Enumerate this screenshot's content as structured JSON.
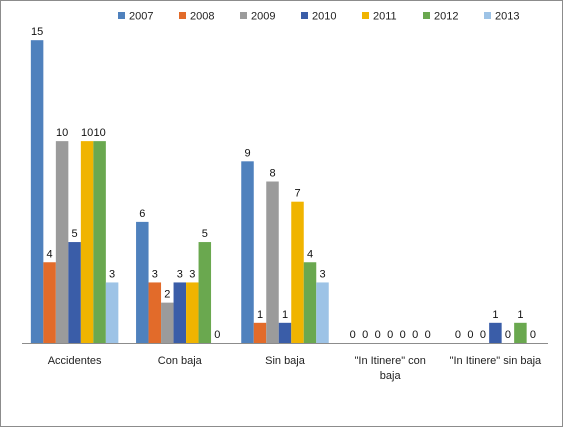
{
  "chart_data": {
    "type": "bar",
    "title": "",
    "xlabel": "",
    "ylabel": "",
    "ylim": [
      0,
      16
    ],
    "grid": false,
    "legend_position": "top",
    "categories": [
      [
        "Accidentes"
      ],
      [
        "Con baja"
      ],
      [
        "Sin baja"
      ],
      [
        "\"In Itinere\" con",
        "baja"
      ],
      [
        "\"In Itinere\" sin baja"
      ]
    ],
    "series": [
      {
        "name": "2007",
        "color": "#4f81bd",
        "values": [
          15,
          6,
          9,
          0,
          0
        ]
      },
      {
        "name": "2008",
        "color": "#e26b2a",
        "values": [
          4,
          3,
          1,
          0,
          0
        ]
      },
      {
        "name": "2009",
        "color": "#9b9b9b",
        "values": [
          10,
          2,
          8,
          0,
          0
        ]
      },
      {
        "name": "2010",
        "color": "#3a5da8",
        "values": [
          5,
          3,
          1,
          0,
          1
        ]
      },
      {
        "name": "2011",
        "color": "#f0b400",
        "values": [
          10,
          3,
          7,
          0,
          0
        ]
      },
      {
        "name": "2012",
        "color": "#6aa84f",
        "values": [
          10,
          5,
          4,
          0,
          1
        ]
      },
      {
        "name": "2013",
        "color": "#9dc3e6",
        "values": [
          3,
          0,
          3,
          0,
          0
        ]
      }
    ]
  }
}
